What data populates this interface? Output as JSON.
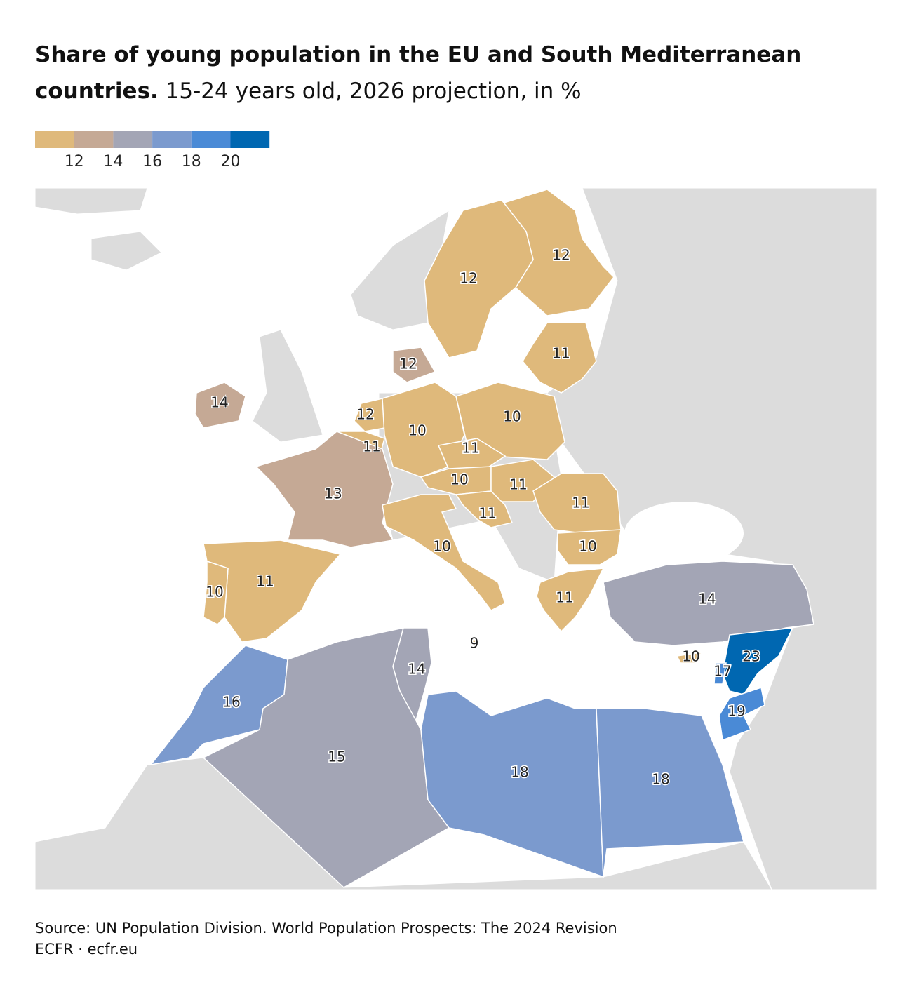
{
  "title": "Share of young population in the EU and South Mediterranean countries.",
  "subtitle": "15-24 years old, 2026 projection, in %",
  "legend": {
    "colors": [
      "#dfb97b",
      "#c5a995",
      "#a3a5b5",
      "#7b9ace",
      "#4a8ad6",
      "#0067b1"
    ],
    "ticks": [
      12,
      14,
      16,
      18,
      20
    ]
  },
  "regions": [
    {
      "value": 12,
      "color": "#dfb97b"
    },
    {
      "value": 12,
      "color": "#dfb97b"
    },
    {
      "value": 11,
      "color": "#dfb97b"
    },
    {
      "value": 12,
      "color": "#c5a995"
    },
    {
      "value": 14,
      "color": "#c5a995"
    },
    {
      "value": 12,
      "color": "#dfb97b"
    },
    {
      "value": 10,
      "color": "#dfb97b"
    },
    {
      "value": 10,
      "color": "#dfb97b"
    },
    {
      "value": 11,
      "color": "#dfb97b"
    },
    {
      "value": 11,
      "color": "#dfb97b"
    },
    {
      "value": 10,
      "color": "#dfb97b"
    },
    {
      "value": 11,
      "color": "#dfb97b"
    },
    {
      "value": 13,
      "color": "#c5a995"
    },
    {
      "value": 11,
      "color": "#dfb97b"
    },
    {
      "value": 11,
      "color": "#dfb97b"
    },
    {
      "value": 10,
      "color": "#dfb97b"
    },
    {
      "value": 10,
      "color": "#dfb97b"
    },
    {
      "value": 11,
      "color": "#dfb97b"
    },
    {
      "value": 10,
      "color": "#dfb97b"
    },
    {
      "value": 11,
      "color": "#dfb97b"
    },
    {
      "value": 14,
      "color": "#a3a5b5"
    },
    {
      "value": 9,
      "color": "#dfb97b"
    },
    {
      "value": 10,
      "color": "#dfb97b"
    },
    {
      "value": 23,
      "color": "#0067b1"
    },
    {
      "value": 17,
      "color": "#4a8ad6"
    },
    {
      "value": 14,
      "color": "#a3a5b5"
    },
    {
      "value": 16,
      "color": "#7b9ace"
    },
    {
      "value": 19,
      "color": "#4a8ad6"
    },
    {
      "value": 15,
      "color": "#a3a5b5"
    },
    {
      "value": 18,
      "color": "#7b9ace"
    },
    {
      "value": 18,
      "color": "#7b9ace"
    }
  ],
  "source": "Source: UN Population Division. World Population Prospects: The 2024 Revision",
  "credit": "ECFR · ecfr.eu"
}
